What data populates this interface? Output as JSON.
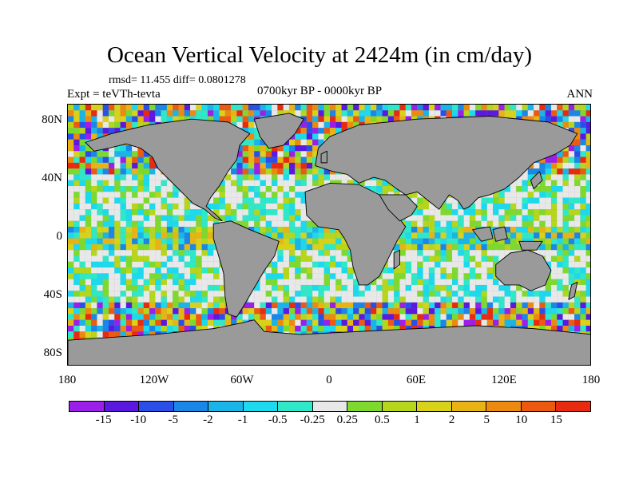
{
  "title": "Ocean Vertical Velocity at 2424m (in cm/day)",
  "stats_text": "rmsd= 11.455 diff= 0.0801278",
  "expt_text": "Expt = teVTh-tevta",
  "period_text": "0700kyr BP - 0000kyr BP",
  "season_text": "ANN",
  "map": {
    "projection": "cylindrical equidistant",
    "lat_range": [
      -90,
      90
    ],
    "lon_range": [
      -180,
      180
    ],
    "land_color": "#9a9a9a",
    "coastline_color": "#000000",
    "y_labels": [
      {
        "text": "80N",
        "lat": 80
      },
      {
        "text": "40N",
        "lat": 40
      },
      {
        "text": "0",
        "lat": 0
      },
      {
        "text": "40S",
        "lat": -40
      },
      {
        "text": "80S",
        "lat": -80
      }
    ],
    "x_labels": [
      {
        "text": "180",
        "lon": -180
      },
      {
        "text": "120W",
        "lon": -120
      },
      {
        "text": "60W",
        "lon": -60
      },
      {
        "text": "0",
        "lon": 0
      },
      {
        "text": "60E",
        "lon": 60
      },
      {
        "text": "120E",
        "lon": 120
      },
      {
        "text": "180",
        "lon": 180
      }
    ]
  },
  "colorbar": {
    "colors": [
      "#9b1fe8",
      "#5a18e0",
      "#2a4fe8",
      "#1a86e8",
      "#19b4e8",
      "#1cd9ee",
      "#2fe8c8",
      "#e8e8e8",
      "#7ed92e",
      "#b5d61a",
      "#d9d21a",
      "#e8b414",
      "#ec8a10",
      "#ec5a12",
      "#e82a10"
    ],
    "labels": [
      "-15",
      "-10",
      "-5",
      "-2",
      "-1",
      "-0.5",
      "-0.25",
      "0.25",
      "0.5",
      "1",
      "2",
      "5",
      "10",
      "15"
    ]
  }
}
